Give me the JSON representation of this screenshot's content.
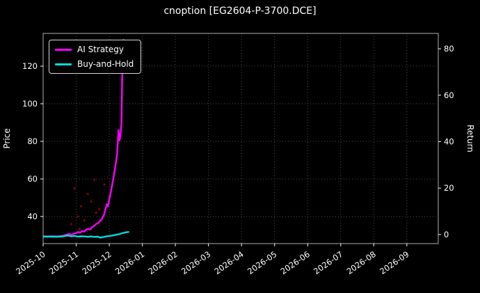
{
  "chart_data": {
    "type": "line",
    "title": "cnoption [EG2604-P-3700.DCE]",
    "background": "#000000",
    "text_color": "#ffffff",
    "grid": true,
    "grid_color": "#4f4f4f",
    "spine_color": "#b0b0b0",
    "legend_position": "upper left",
    "x_range": [
      0,
      11.95
    ],
    "x_ticks": [
      0,
      1,
      2,
      3,
      4,
      5,
      6,
      7,
      8,
      9,
      10,
      11
    ],
    "x_tick_labels": [
      "2025-10",
      "2025-11",
      "2025-12",
      "2026-01",
      "2026-02",
      "2026-03",
      "2026-04",
      "2026-05",
      "2026-06",
      "2026-07",
      "2026-08",
      "2026-09"
    ],
    "left_axis": {
      "label": "Price",
      "ticks": [
        40,
        60,
        80,
        100,
        120
      ],
      "range": [
        25.6,
        137.4
      ]
    },
    "right_axis": {
      "label": "Return",
      "ticks": [
        0,
        20,
        40,
        60,
        80
      ],
      "range": [
        -3.9,
        86.6
      ]
    },
    "series": [
      {
        "name": "AI Strategy",
        "color": "#ff00ff",
        "width": 2.4,
        "x": [
          0,
          0.15,
          0.3,
          0.45,
          0.6,
          0.7,
          0.78,
          0.85,
          0.92,
          1.0,
          1.06,
          1.12,
          1.18,
          1.24,
          1.3,
          1.36,
          1.42,
          1.48,
          1.54,
          1.6,
          1.66,
          1.72,
          1.78,
          1.84,
          1.88,
          1.92,
          1.96,
          2.0,
          2.04,
          2.08,
          2.12,
          2.16,
          2.2,
          2.24,
          2.28,
          2.31,
          2.34,
          2.37,
          2.4,
          2.43
        ],
        "y": [
          29.5,
          29.4,
          29.5,
          29.4,
          29.7,
          30.3,
          30.7,
          30.4,
          30.8,
          31.2,
          31.8,
          31.4,
          32.3,
          32.0,
          33.0,
          33.4,
          33.1,
          34.3,
          35.0,
          36.0,
          36.5,
          37.5,
          38.8,
          41.0,
          43.5,
          46.5,
          45.5,
          49.0,
          52.5,
          56.0,
          60.0,
          64.0,
          68.5,
          74.0,
          86.0,
          80.5,
          83.0,
          90.0,
          125.0,
          134.0
        ]
      },
      {
        "name": "Buy-and-Hold",
        "color": "#00dede",
        "width": 2.4,
        "x": [
          0,
          0.2,
          0.4,
          0.6,
          0.75,
          0.85,
          0.95,
          1.05,
          1.15,
          1.25,
          1.35,
          1.45,
          1.55,
          1.65,
          1.72,
          1.8,
          1.9,
          2.0,
          2.1,
          2.2,
          2.3,
          2.4,
          2.5,
          2.58
        ],
        "y": [
          29.3,
          29.3,
          29.2,
          29.5,
          29.9,
          29.5,
          29.7,
          29.3,
          29.5,
          29.4,
          29.2,
          29.4,
          29.1,
          29.3,
          28.8,
          29.0,
          29.4,
          29.6,
          29.9,
          30.3,
          30.6,
          31.2,
          31.6,
          31.8
        ]
      }
    ],
    "markers": {
      "name": "trade-markers",
      "color": "#7a0a0a",
      "points": [
        [
          0.85,
          36
        ],
        [
          0.95,
          55
        ],
        [
          1.05,
          40
        ],
        [
          1.15,
          45.5
        ],
        [
          1.25,
          38
        ],
        [
          1.35,
          52
        ],
        [
          1.45,
          48
        ],
        [
          1.55,
          59.5
        ],
        [
          1.7,
          44
        ],
        [
          1.85,
          57
        ],
        [
          2.0,
          50.5
        ],
        [
          1.1,
          33.5
        ],
        [
          1.6,
          42
        ]
      ]
    }
  }
}
